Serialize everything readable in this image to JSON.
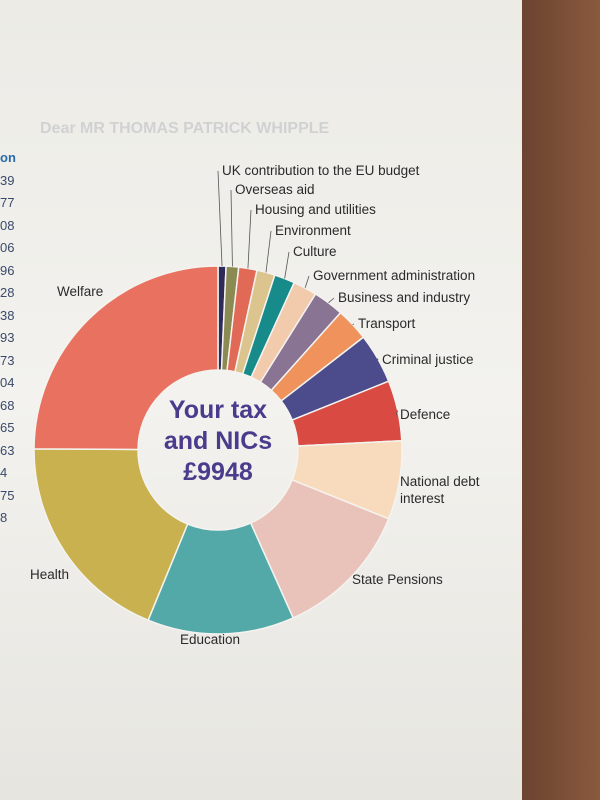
{
  "background_text": {
    "greeting": "Dear MR THOMAS PATRICK WHIPPLE",
    "left_column": [
      "on",
      "39",
      "77",
      "08",
      "06",
      "96",
      "28",
      "38",
      "93",
      "73",
      "04",
      "68",
      "65",
      "63",
      "4",
      "75",
      "8"
    ]
  },
  "chart_data": {
    "type": "donut",
    "center_label": [
      "Your tax",
      "and NICs",
      "£9948"
    ],
    "categories": [
      "UK contribution to the EU budget",
      "Overseas aid",
      "Housing and utilities",
      "Environment",
      "Culture",
      "Government administration",
      "Business and industry",
      "Transport",
      "Criminal justice",
      "Defence",
      "National debt interest",
      "State Pensions",
      "Education",
      "Health",
      "Welfare"
    ],
    "values": [
      0.7,
      1.1,
      1.6,
      1.6,
      1.8,
      2.1,
      2.7,
      2.9,
      4.4,
      5.3,
      6.9,
      12.2,
      12.9,
      18.9,
      24.9
    ],
    "colors": [
      "#2e2a5a",
      "#8a8a52",
      "#e06a55",
      "#dcc48e",
      "#178a8a",
      "#f2cbad",
      "#8a7494",
      "#f0925c",
      "#4c4c8c",
      "#d84a42",
      "#f8dbbc",
      "#e9c2ba",
      "#52a9a8",
      "#c9b150",
      "#e8725f"
    ]
  }
}
